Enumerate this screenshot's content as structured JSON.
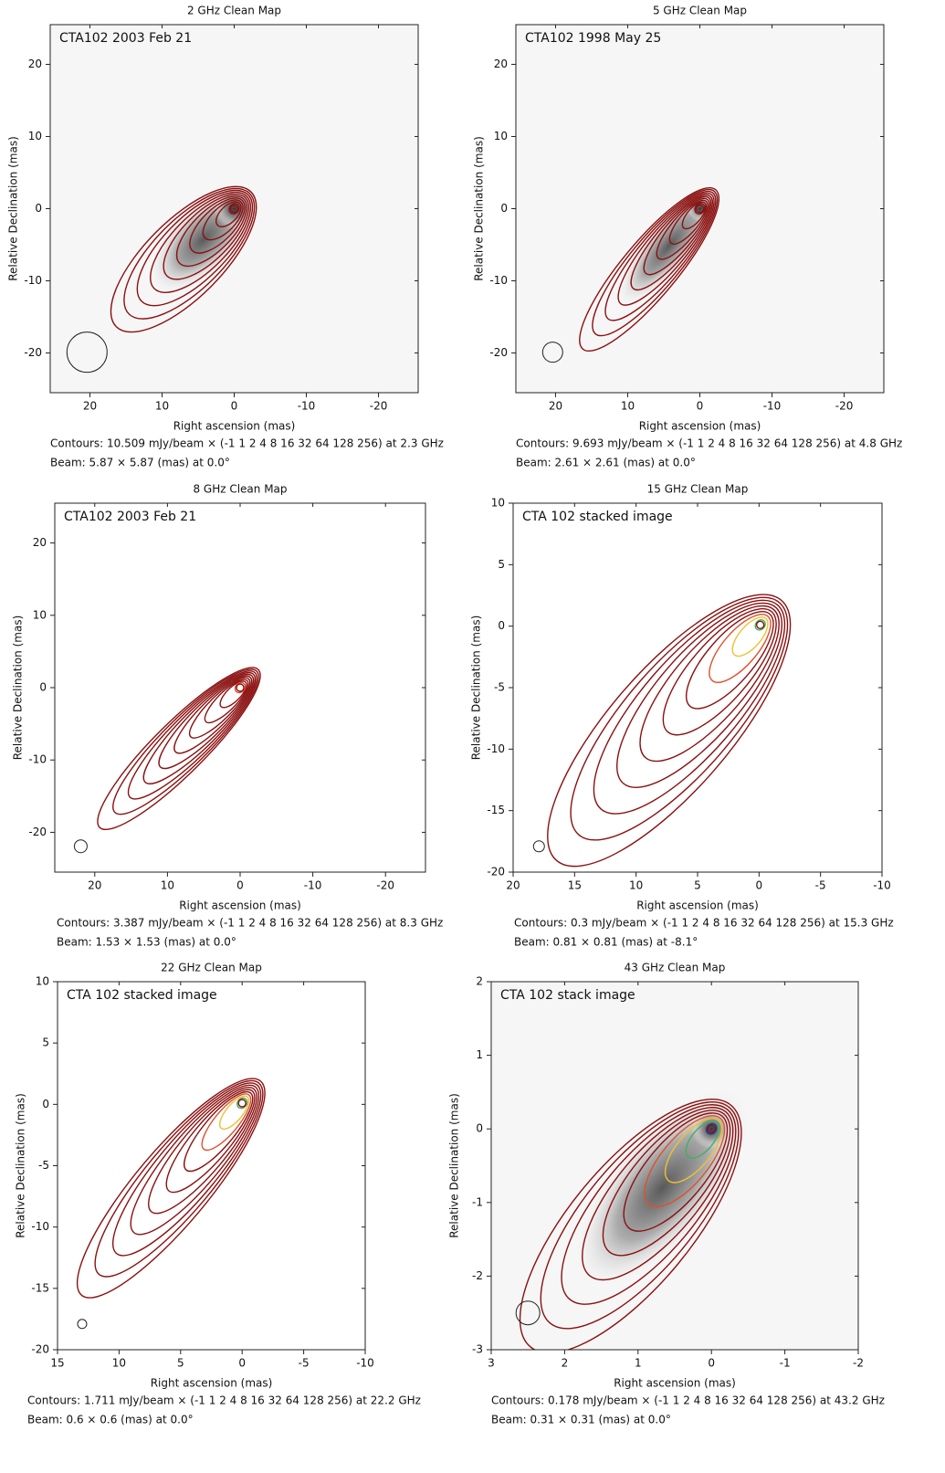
{
  "chart_data": [
    {
      "type": "image",
      "title": "2 GHz Clean Map",
      "annotation": "CTA102  2003 Feb 21",
      "x_label": "Right ascension (mas)",
      "y_label": "Relative Declination (mas)",
      "xlim": [
        25.5,
        -25.5
      ],
      "ylim": [
        -25.5,
        25.5
      ],
      "xticks": [
        20,
        10,
        0,
        -10,
        -20
      ],
      "yticks": [
        -20,
        -10,
        0,
        10,
        20
      ],
      "contours": "Contours: 10.509 mJy/beam × (-1 1 2 4 8 16 32 64 128 256) at 2.3 GHz",
      "beam": "Beam: 5.87 × 5.87 (mas) at 0.0°"
    },
    {
      "type": "image",
      "title": "5 GHz Clean Map",
      "annotation": "CTA102  1998 May 25",
      "x_label": "Right ascension (mas)",
      "y_label": "Relative Declination (mas)",
      "xlim": [
        25.5,
        -25.5
      ],
      "ylim": [
        -25.5,
        25.5
      ],
      "xticks": [
        20,
        10,
        0,
        -10,
        -20
      ],
      "yticks": [
        -20,
        -10,
        0,
        10,
        20
      ],
      "contours": "Contours: 9.693 mJy/beam × (-1 1 2 4 8 16 32 64 128 256) at 4.8 GHz",
      "beam": "Beam: 2.61 × 2.61 (mas) at 0.0°"
    },
    {
      "type": "image",
      "title": "8 GHz Clean Map",
      "annotation": "CTA102  2003 Feb 21",
      "x_label": "Right ascension (mas)",
      "y_label": "Relative Declination (mas)",
      "xlim": [
        25.5,
        -25.5
      ],
      "ylim": [
        -25.5,
        25.5
      ],
      "xticks": [
        20,
        10,
        0,
        -10,
        -20
      ],
      "yticks": [
        -20,
        -10,
        0,
        10,
        20
      ],
      "contours": "Contours: 3.387 mJy/beam × (-1 1 2 4 8 16 32 64 128 256) at 8.3 GHz",
      "beam": "Beam: 1.53 × 1.53 (mas) at 0.0°"
    },
    {
      "type": "image",
      "title": "15 GHz Clean Map",
      "annotation": "CTA 102 stacked image",
      "x_label": "Right ascension (mas)",
      "y_label": "Relative Declination (mas)",
      "xlim": [
        20,
        -10
      ],
      "ylim": [
        -20,
        10
      ],
      "xticks": [
        20,
        15,
        10,
        5,
        0,
        -5,
        -10
      ],
      "yticks": [
        -20,
        -15,
        -10,
        -5,
        0,
        5,
        10
      ],
      "contours": "Contours: 0.3 mJy/beam × (-1 1 2 4 8 16 32 64 128 256) at 15.3 GHz",
      "beam": "Beam: 0.81 × 0.81 (mas) at -8.1°"
    },
    {
      "type": "image",
      "title": "22 GHz Clean Map",
      "annotation": "CTA 102 stacked image",
      "x_label": "Right ascension (mas)",
      "y_label": "Relative Declination (mas)",
      "xlim": [
        15,
        -10
      ],
      "ylim": [
        -20,
        10
      ],
      "xticks": [
        15,
        10,
        5,
        0,
        -5,
        -10
      ],
      "yticks": [
        -20,
        -15,
        -10,
        -5,
        0,
        5,
        10
      ],
      "contours": "Contours: 1.711 mJy/beam × (-1 1 2 4 8 16 32 64 128 256) at 22.2 GHz",
      "beam": "Beam: 0.6 × 0.6 (mas) at 0.0°"
    },
    {
      "type": "image",
      "title": "43 GHz Clean Map",
      "annotation": "CTA 102 stack image",
      "x_label": "Right ascension (mas)",
      "y_label": "Relative Declination (mas)",
      "xlim": [
        3,
        -2
      ],
      "ylim": [
        -3,
        2
      ],
      "xticks": [
        3,
        2,
        1,
        0,
        -1,
        -2
      ],
      "yticks": [
        -3,
        -2,
        -1,
        0,
        1,
        2
      ],
      "contours": "Contours: 0.178 mJy/beam × (-1 1 2 4 8 16 32 64 128 256) at 43.2 GHz",
      "beam": "Beam: 0.31 × 0.31 (mas) at 0.0°"
    }
  ]
}
